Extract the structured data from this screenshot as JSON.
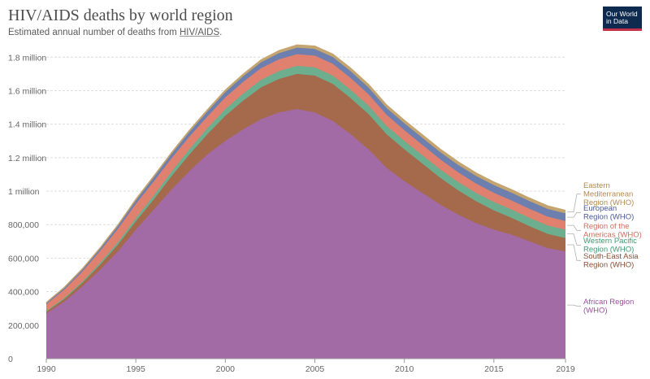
{
  "header": {
    "title": "HIV/AIDS deaths by world region",
    "subtitle_prefix": "Estimated annual number of deaths from ",
    "subtitle_link": "HIV/AIDS",
    "subtitle_suffix": ".",
    "logo_line1": "Our World",
    "logo_line2": "in Data"
  },
  "chart_data": {
    "type": "area",
    "stacked": true,
    "x": [
      1990,
      1991,
      1992,
      1993,
      1994,
      1995,
      1996,
      1997,
      1998,
      1999,
      2000,
      2001,
      2002,
      2003,
      2004,
      2005,
      2006,
      2007,
      2008,
      2009,
      2010,
      2011,
      2012,
      2013,
      2014,
      2015,
      2016,
      2017,
      2018,
      2019
    ],
    "series": [
      {
        "name": "African Region (WHO)",
        "color": "#a36ba6",
        "values": [
          270000,
          340000,
          430000,
          530000,
          640000,
          770000,
          890000,
          1010000,
          1120000,
          1220000,
          1300000,
          1370000,
          1430000,
          1470000,
          1490000,
          1470000,
          1420000,
          1340000,
          1250000,
          1140000,
          1060000,
          990000,
          920000,
          860000,
          810000,
          770000,
          740000,
          700000,
          660000,
          640000
        ]
      },
      {
        "name": "South-East Asia Region (WHO)",
        "color": "#a5694b",
        "values": [
          10000,
          15000,
          20000,
          30000,
          40000,
          50000,
          60000,
          80000,
          100000,
          120000,
          150000,
          170000,
          190000,
          200000,
          210000,
          220000,
          220000,
          215000,
          210000,
          200000,
          190000,
          175000,
          160000,
          145000,
          130000,
          115000,
          100000,
          90000,
          85000,
          80000
        ]
      },
      {
        "name": "Western Pacific Region (WHO)",
        "color": "#6cae8e",
        "values": [
          5000,
          7000,
          9000,
          12000,
          15000,
          19000,
          23000,
          27000,
          32000,
          36000,
          40000,
          43000,
          45000,
          47000,
          48000,
          49000,
          50000,
          50000,
          50000,
          50000,
          50000,
          50000,
          50000,
          50000,
          50000,
          50000,
          50000,
          50000,
          50000,
          50000
        ]
      },
      {
        "name": "Region of the Americas (WHO)",
        "color": "#e0816f",
        "values": [
          40000,
          50000,
          60000,
          70000,
          80000,
          85000,
          85000,
          80000,
          75000,
          70000,
          70000,
          70000,
          70000,
          70000,
          70000,
          70000,
          70000,
          70000,
          68000,
          66000,
          64000,
          62000,
          60000,
          58000,
          56000,
          55000,
          54000,
          54000,
          53000,
          52000
        ]
      },
      {
        "name": "European Region (WHO)",
        "color": "#6d7faf",
        "values": [
          8000,
          10000,
          12000,
          14000,
          17000,
          20000,
          23000,
          25000,
          27000,
          29000,
          31000,
          33000,
          35000,
          37000,
          39000,
          40000,
          41000,
          41000,
          41000,
          41000,
          41000,
          42000,
          43000,
          44000,
          45000,
          46000,
          46000,
          46000,
          46000,
          45000
        ]
      },
      {
        "name": "Eastern Mediterranean Region (WHO)",
        "color": "#c5a56f",
        "values": [
          2000,
          3000,
          4000,
          5000,
          6000,
          7000,
          8000,
          9000,
          10000,
          11000,
          12000,
          13000,
          14000,
          15000,
          16000,
          17000,
          17000,
          18000,
          18000,
          18000,
          18000,
          18000,
          18000,
          18000,
          18000,
          18000,
          18000,
          18000,
          18000,
          18000
        ]
      }
    ],
    "ylim": [
      0,
      1850000
    ],
    "yticks": [
      0,
      200000,
      400000,
      600000,
      800000,
      1000000,
      1200000,
      1400000,
      1600000,
      1800000
    ],
    "ytick_labels": [
      "0",
      "200,000",
      "400,000",
      "600,000",
      "800,000",
      "1 million",
      "1.2 million",
      "1.4 million",
      "1.6 million",
      "1.8 million"
    ],
    "xticks": [
      1990,
      1995,
      2000,
      2005,
      2010,
      2015,
      2019
    ],
    "grid": "horizontal dashed",
    "legend": "right, labels at series ends"
  },
  "legend_labels": [
    {
      "series": 5,
      "lines": [
        "Eastern",
        "Mediterranean",
        "Region (WHO)"
      ],
      "color": "#b48a4e"
    },
    {
      "series": 4,
      "lines": [
        "European",
        "Region (WHO)"
      ],
      "color": "#4a5a9a"
    },
    {
      "series": 3,
      "lines": [
        "Region of the",
        "Americas (WHO)"
      ],
      "color": "#d26e5c"
    },
    {
      "series": 2,
      "lines": [
        "Western Pacific",
        "Region (WHO)"
      ],
      "color": "#3f9a70"
    },
    {
      "series": 1,
      "lines": [
        "South-East Asia",
        "Region (WHO)"
      ],
      "color": "#8a4f33"
    },
    {
      "series": 0,
      "lines": [
        "African Region",
        "(WHO)"
      ],
      "color": "#9c4e9e"
    }
  ]
}
